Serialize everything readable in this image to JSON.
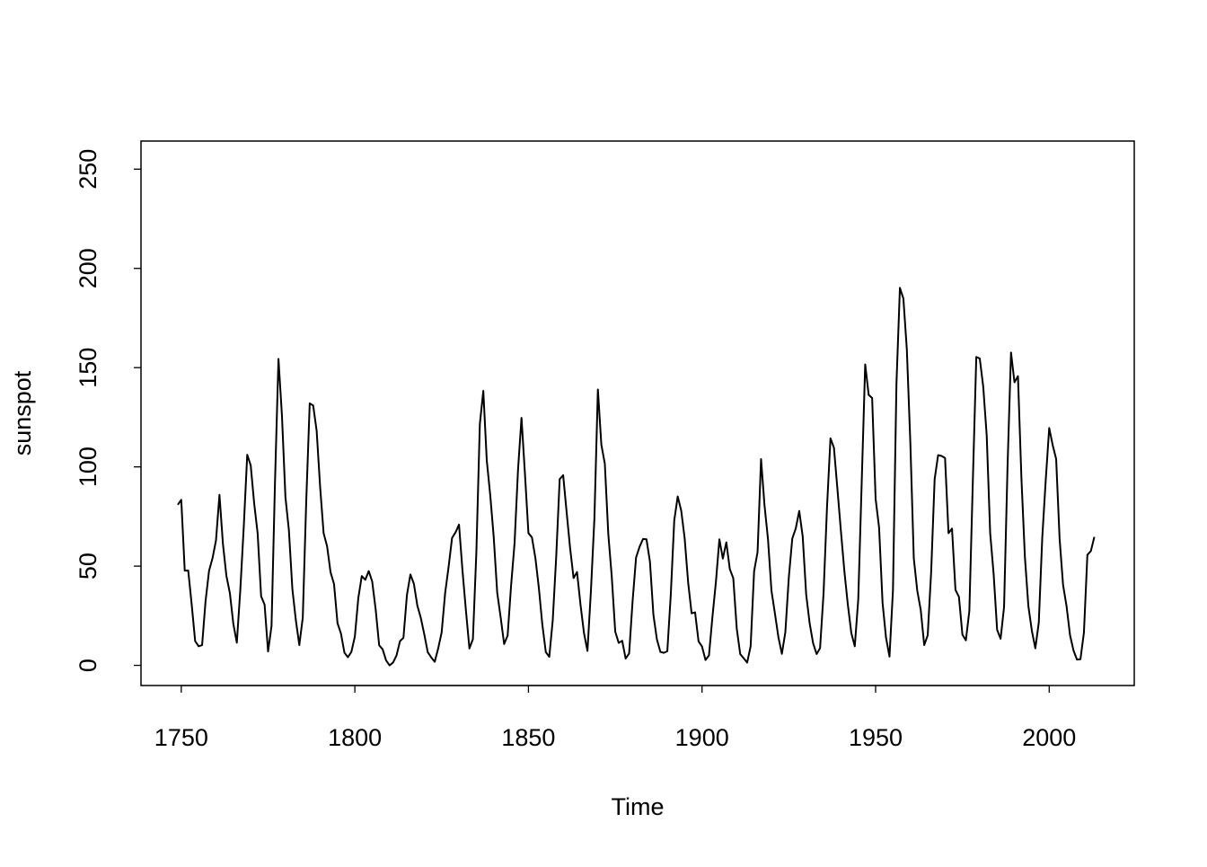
{
  "chart_data": {
    "type": "line",
    "x_label": "Time",
    "y_label": "sunspot",
    "x": [
      1749,
      1750,
      1751,
      1752,
      1753,
      1754,
      1755,
      1756,
      1757,
      1758,
      1759,
      1760,
      1761,
      1762,
      1763,
      1764,
      1765,
      1766,
      1767,
      1768,
      1769,
      1770,
      1771,
      1772,
      1773,
      1774,
      1775,
      1776,
      1777,
      1778,
      1779,
      1780,
      1781,
      1782,
      1783,
      1784,
      1785,
      1786,
      1787,
      1788,
      1789,
      1790,
      1791,
      1792,
      1793,
      1794,
      1795,
      1796,
      1797,
      1798,
      1799,
      1800,
      1801,
      1802,
      1803,
      1804,
      1805,
      1806,
      1807,
      1808,
      1809,
      1810,
      1811,
      1812,
      1813,
      1814,
      1815,
      1816,
      1817,
      1818,
      1819,
      1820,
      1821,
      1822,
      1823,
      1824,
      1825,
      1826,
      1827,
      1828,
      1829,
      1830,
      1831,
      1832,
      1833,
      1834,
      1835,
      1836,
      1837,
      1838,
      1839,
      1840,
      1841,
      1842,
      1843,
      1844,
      1845,
      1846,
      1847,
      1848,
      1849,
      1850,
      1851,
      1852,
      1853,
      1854,
      1855,
      1856,
      1857,
      1858,
      1859,
      1860,
      1861,
      1862,
      1863,
      1864,
      1865,
      1866,
      1867,
      1868,
      1869,
      1870,
      1871,
      1872,
      1873,
      1874,
      1875,
      1876,
      1877,
      1878,
      1879,
      1880,
      1881,
      1882,
      1883,
      1884,
      1885,
      1886,
      1887,
      1888,
      1889,
      1890,
      1891,
      1892,
      1893,
      1894,
      1895,
      1896,
      1897,
      1898,
      1899,
      1900,
      1901,
      1902,
      1903,
      1904,
      1905,
      1906,
      1907,
      1908,
      1909,
      1910,
      1911,
      1912,
      1913,
      1914,
      1915,
      1916,
      1917,
      1918,
      1919,
      1920,
      1921,
      1922,
      1923,
      1924,
      1925,
      1926,
      1927,
      1928,
      1929,
      1930,
      1931,
      1932,
      1933,
      1934,
      1935,
      1936,
      1937,
      1938,
      1939,
      1940,
      1941,
      1942,
      1943,
      1944,
      1945,
      1946,
      1947,
      1948,
      1949,
      1950,
      1951,
      1952,
      1953,
      1954,
      1955,
      1956,
      1957,
      1958,
      1959,
      1960,
      1961,
      1962,
      1963,
      1964,
      1965,
      1966,
      1967,
      1968,
      1969,
      1970,
      1971,
      1972,
      1973,
      1974,
      1975,
      1976,
      1977,
      1978,
      1979,
      1980,
      1981,
      1982,
      1983,
      1984,
      1985,
      1986,
      1987,
      1988,
      1989,
      1990,
      1991,
      1992,
      1993,
      1994,
      1995,
      1996,
      1997,
      1998,
      1999,
      2000,
      2001,
      2002,
      2003,
      2004,
      2005,
      2006,
      2007,
      2008,
      2009,
      2010,
      2011,
      2012,
      2013
    ],
    "values": [
      80.9,
      83.4,
      47.7,
      47.8,
      30.7,
      12.2,
      9.6,
      10.2,
      32.4,
      47.6,
      54.0,
      62.9,
      85.9,
      61.2,
      45.1,
      36.4,
      20.9,
      11.4,
      37.8,
      69.8,
      106.1,
      100.8,
      81.6,
      66.5,
      34.8,
      30.6,
      7.0,
      19.8,
      92.5,
      154.4,
      125.9,
      84.8,
      68.1,
      38.5,
      22.8,
      10.2,
      24.1,
      82.9,
      132.0,
      130.9,
      118.1,
      89.9,
      66.6,
      60.0,
      46.9,
      41.0,
      21.3,
      16.0,
      6.4,
      4.1,
      6.8,
      14.5,
      34.0,
      45.0,
      43.1,
      47.5,
      42.2,
      28.1,
      10.1,
      8.1,
      2.5,
      0.0,
      1.4,
      5.0,
      12.2,
      13.9,
      35.4,
      45.8,
      41.1,
      30.1,
      23.9,
      15.6,
      6.6,
      4.0,
      1.8,
      8.5,
      16.6,
      36.3,
      49.6,
      64.2,
      67.0,
      70.9,
      47.8,
      27.5,
      8.5,
      13.2,
      56.9,
      121.5,
      138.3,
      103.2,
      85.7,
      64.6,
      36.7,
      24.2,
      10.7,
      15.0,
      40.1,
      61.5,
      98.5,
      124.7,
      96.3,
      66.6,
      64.5,
      54.1,
      39.0,
      20.6,
      6.7,
      4.3,
      22.7,
      54.8,
      93.8,
      95.8,
      77.2,
      59.1,
      44.0,
      47.0,
      30.5,
      16.3,
      7.3,
      37.6,
      74.0,
      139.0,
      111.2,
      101.6,
      66.2,
      44.7,
      17.0,
      11.3,
      12.4,
      3.4,
      6.0,
      32.3,
      54.3,
      59.7,
      63.7,
      63.5,
      52.2,
      25.4,
      13.1,
      6.8,
      6.3,
      7.1,
      35.6,
      73.0,
      85.1,
      78.0,
      64.0,
      41.8,
      26.2,
      26.7,
      12.1,
      9.5,
      2.7,
      5.0,
      24.4,
      42.0,
      63.5,
      53.8,
      62.0,
      48.5,
      43.9,
      18.6,
      5.7,
      3.6,
      1.4,
      9.6,
      47.4,
      57.1,
      103.9,
      80.6,
      63.6,
      37.6,
      26.1,
      14.2,
      5.8,
      16.7,
      44.3,
      63.9,
      69.0,
      77.8,
      64.9,
      35.7,
      21.2,
      11.1,
      5.7,
      8.7,
      36.1,
      79.7,
      114.4,
      109.6,
      88.8,
      67.8,
      47.5,
      30.6,
      16.3,
      9.6,
      33.2,
      92.6,
      151.6,
      136.3,
      134.7,
      83.9,
      69.4,
      31.5,
      13.9,
      4.4,
      38.0,
      141.7,
      190.2,
      184.8,
      159.0,
      112.3,
      53.9,
      37.6,
      27.9,
      10.2,
      15.1,
      47.0,
      93.8,
      105.9,
      105.5,
      104.5,
      66.6,
      68.9,
      38.0,
      34.5,
      15.5,
      12.6,
      27.5,
      92.5,
      155.4,
      154.6,
      140.4,
      115.9,
      66.6,
      45.9,
      17.9,
      13.4,
      29.4,
      100.2,
      157.6,
      142.6,
      145.7,
      94.3,
      54.6,
      29.9,
      17.5,
      8.6,
      21.5,
      64.3,
      93.3,
      119.6,
      111.0,
      104.0,
      63.7,
      40.4,
      29.8,
      15.2,
      7.5,
      2.9,
      3.1,
      16.5,
      55.7,
      57.6,
      64.7
    ],
    "color": "#000000",
    "xlim": [
      1738.4,
      2024.5
    ],
    "xticks": [
      1750,
      1800,
      1850,
      1900,
      1950,
      2000
    ],
    "ylim": [
      -10.16,
      264.16
    ],
    "yticks": [
      0,
      50,
      100,
      150,
      200,
      250
    ]
  }
}
